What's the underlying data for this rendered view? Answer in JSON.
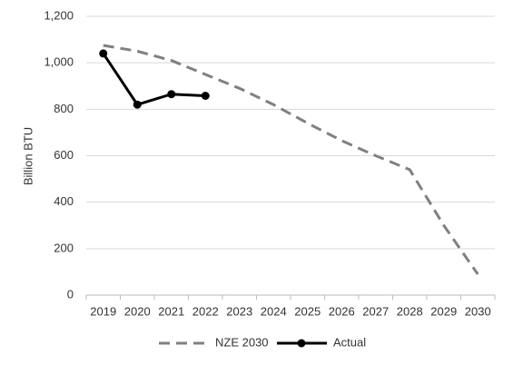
{
  "chart_data": {
    "type": "line",
    "y_label": "Billion BTU",
    "categories": [
      "2019",
      "2020",
      "2021",
      "2022",
      "2023",
      "2024",
      "2025",
      "2026",
      "2027",
      "2028",
      "2029",
      "2030"
    ],
    "series": [
      {
        "name": "NZE 2030",
        "color": "#808080",
        "dashed": true,
        "markers": false,
        "values": [
          1075,
          1050,
          1010,
          950,
          890,
          820,
          740,
          665,
          600,
          540,
          300,
          90
        ]
      },
      {
        "name": "Actual",
        "color": "#000000",
        "dashed": false,
        "markers": true,
        "values": [
          1040,
          820,
          865,
          858,
          null,
          null,
          null,
          null,
          null,
          null,
          null,
          null
        ]
      }
    ],
    "ylim": [
      0,
      1200
    ],
    "yticks": [
      0,
      200,
      400,
      600,
      800,
      {
        "value": 1000,
        "label": "1,000"
      },
      {
        "value": 1200,
        "label": "1,200"
      }
    ],
    "grid": true,
    "legend": "bottom"
  }
}
